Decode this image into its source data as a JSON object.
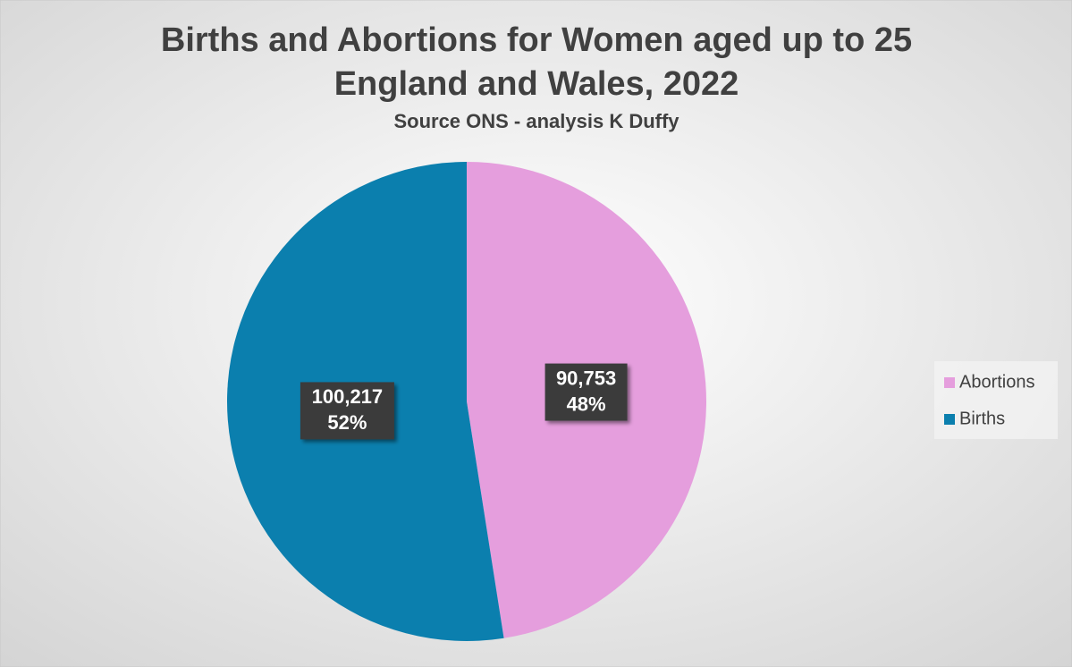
{
  "chart_data": {
    "type": "pie",
    "title": [
      "Births and Abortions for Women aged up to 25",
      "England and Wales, 2022"
    ],
    "subtitle": "Source ONS - analysis K Duffy",
    "categories": [
      "Abortions",
      "Births"
    ],
    "values": [
      90753,
      100217
    ],
    "value_labels": [
      "90,753",
      "100,217"
    ],
    "percent_labels": [
      "48%",
      "52%"
    ],
    "colors": [
      "#e59edd",
      "#0b7fae"
    ],
    "legend": "right"
  }
}
